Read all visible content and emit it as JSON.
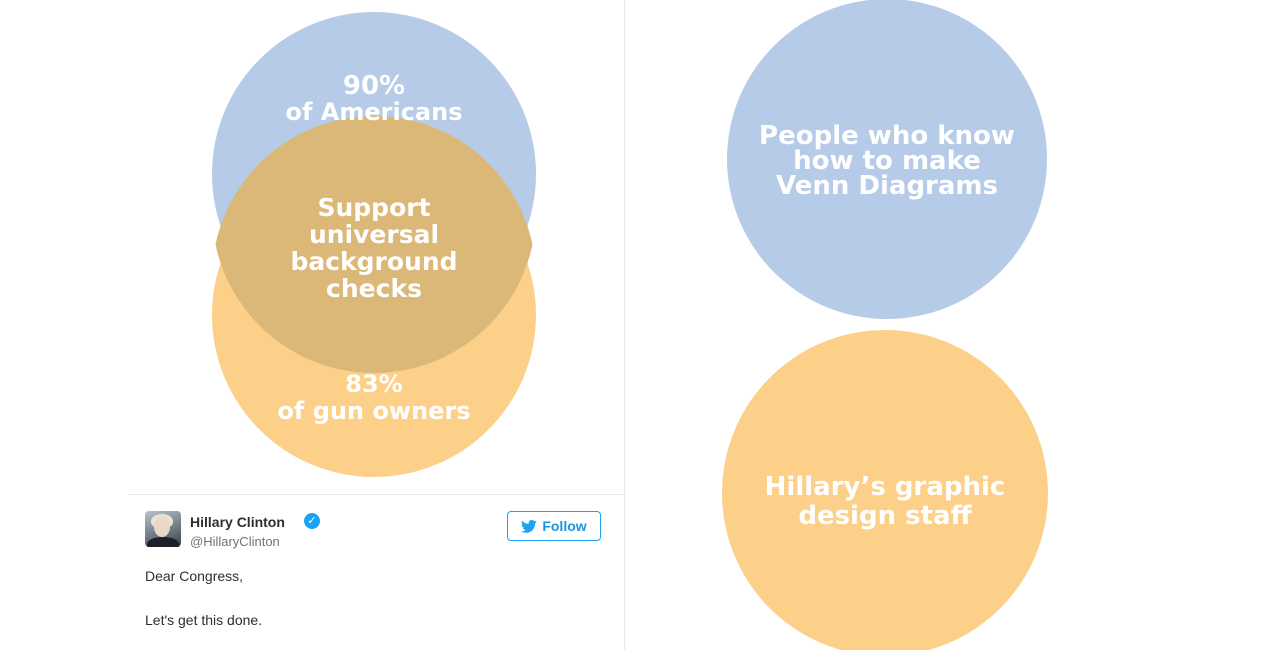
{
  "left_graphic": {
    "top_circle": {
      "label_lines": [
        "90%",
        "of Americans"
      ],
      "color": "#b5cbe8"
    },
    "bottom_circle": {
      "label_lines": [
        "83%",
        "of gun owners"
      ],
      "color": "#fdd08a"
    },
    "overlap": {
      "label_lines": [
        "Support",
        "universal",
        "background",
        "checks"
      ],
      "color": "#dbb877"
    }
  },
  "tweet": {
    "user_name": "Hillary Clinton",
    "handle": "@HillaryClinton",
    "follow_label": "Follow",
    "text_lines": [
      "Dear Congress,",
      "Let's get this done."
    ],
    "icons": {
      "verified": "verified-badge-icon",
      "follow": "twitter-bird-icon"
    },
    "accent_color": "#1da1f2"
  },
  "right_graphic": {
    "top_circle": {
      "label_lines": [
        "People who know",
        "how to make",
        "Venn Diagrams"
      ],
      "color": "#b5cbe8"
    },
    "bottom_circle": {
      "label_lines": [
        "Hillary’s graphic",
        "design staff"
      ],
      "color": "#fdd08a"
    }
  }
}
